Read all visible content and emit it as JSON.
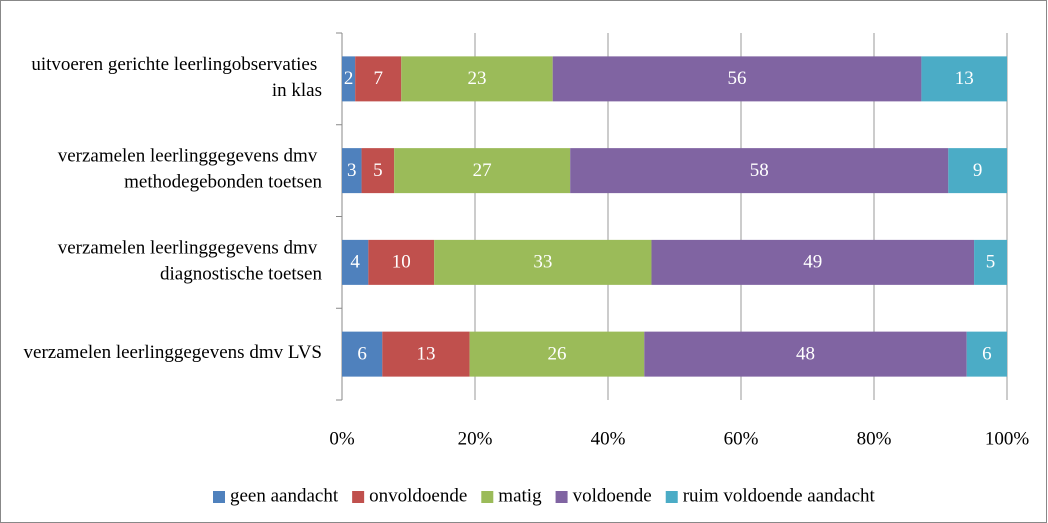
{
  "chart_data": {
    "type": "bar",
    "orientation": "horizontal",
    "stacking": "percent",
    "categories": [
      "uitvoeren gerichte leerlingobservaties in klas",
      "verzamelen leerlinggegevens dmv methodegebonden toetsen",
      "verzamelen leerlinggegevens dmv diagnostische toetsen",
      "verzamelen leerlinggegevens dmv LVS"
    ],
    "series": [
      {
        "name": "geen aandacht",
        "color": "#4f81bd",
        "values": [
          2,
          3,
          4,
          6
        ]
      },
      {
        "name": "onvoldoende",
        "color": "#c0504d",
        "values": [
          7,
          5,
          10,
          13
        ]
      },
      {
        "name": "matig",
        "color": "#9bbb59",
        "values": [
          23,
          27,
          33,
          26
        ]
      },
      {
        "name": "voldoende",
        "color": "#8064a2",
        "values": [
          56,
          58,
          49,
          48
        ]
      },
      {
        "name": "ruim voldoende aandacht",
        "color": "#4bacc6",
        "values": [
          13,
          9,
          5,
          6
        ]
      }
    ],
    "xlim": [
      0,
      100
    ],
    "xticks": [
      {
        "value": 0,
        "label": "0%"
      },
      {
        "value": 20,
        "label": "20%"
      },
      {
        "value": 40,
        "label": "40%"
      },
      {
        "value": 60,
        "label": "60%"
      },
      {
        "value": 80,
        "label": "80%"
      },
      {
        "value": 100,
        "label": "100%"
      }
    ],
    "grid": true,
    "legend": "bottom"
  }
}
